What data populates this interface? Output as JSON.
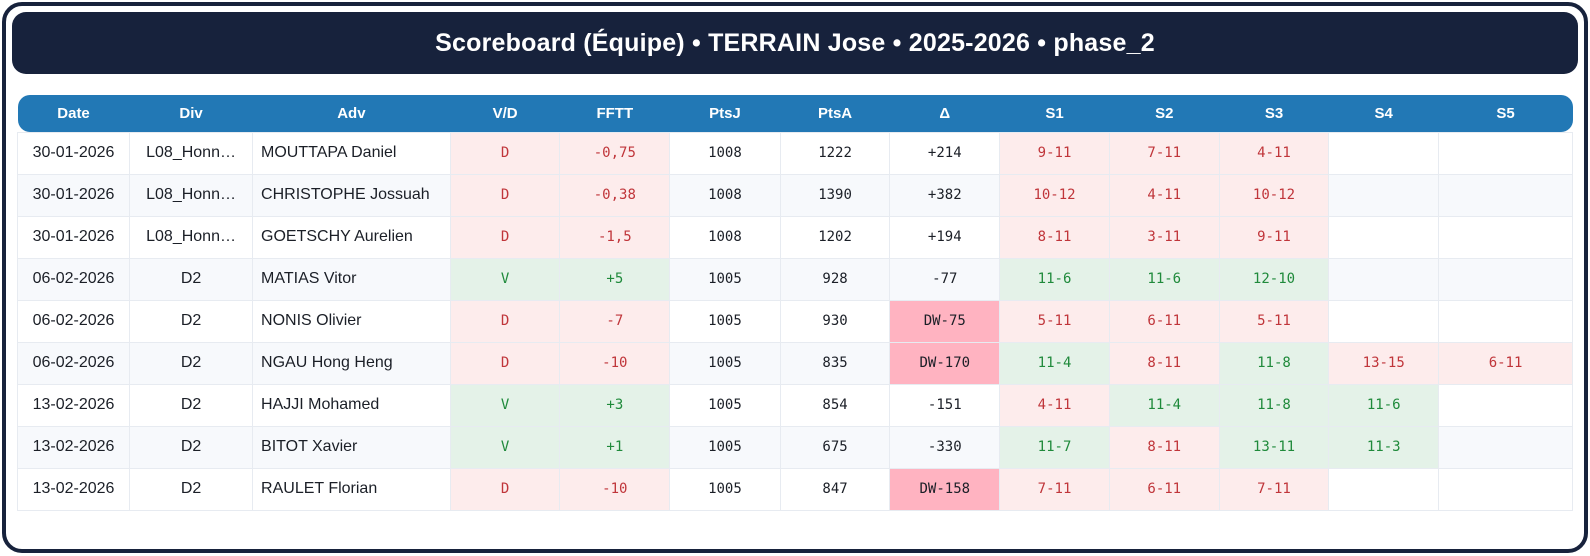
{
  "header": {
    "title": "Scoreboard (Équipe) • TERRAIN Jose • 2025-2026 • phase_2"
  },
  "colors": {
    "navy": "#17223c",
    "blue": "#2278b5",
    "loss_bg": "#fdecec",
    "win_bg": "#e4f2e8",
    "dw_bg": "#ffb3c1",
    "loss_text": "#c0353a",
    "win_text": "#1f8a3b"
  },
  "chart_data": {
    "type": "table",
    "title": "Scoreboard (Équipe) • TERRAIN Jose • 2025-2026 • phase_2",
    "columns": [
      "Date",
      "Div",
      "Adv",
      "V/D",
      "FFTT",
      "PtsJ",
      "PtsA",
      "Δ",
      "S1",
      "S2",
      "S3",
      "S4",
      "S5"
    ],
    "rows": [
      {
        "date": "30-01-2026",
        "div": "L08_Honn…",
        "adv": "MOUTTAPA Daniel",
        "result": "D",
        "fftt": "-0,75",
        "ptsj": "1008",
        "ptsa": "1222",
        "delta": "+214",
        "sets": [
          {
            "score": "9-11",
            "result": "loss"
          },
          {
            "score": "7-11",
            "result": "loss"
          },
          {
            "score": "4-11",
            "result": "loss"
          },
          null,
          null
        ]
      },
      {
        "date": "30-01-2026",
        "div": "L08_Honn…",
        "adv": "CHRISTOPHE Jossuah",
        "result": "D",
        "fftt": "-0,38",
        "ptsj": "1008",
        "ptsa": "1390",
        "delta": "+382",
        "sets": [
          {
            "score": "10-12",
            "result": "loss"
          },
          {
            "score": "4-11",
            "result": "loss"
          },
          {
            "score": "10-12",
            "result": "loss"
          },
          null,
          null
        ]
      },
      {
        "date": "30-01-2026",
        "div": "L08_Honn…",
        "adv": "GOETSCHY Aurelien",
        "result": "D",
        "fftt": "-1,5",
        "ptsj": "1008",
        "ptsa": "1202",
        "delta": "+194",
        "sets": [
          {
            "score": "8-11",
            "result": "loss"
          },
          {
            "score": "3-11",
            "result": "loss"
          },
          {
            "score": "9-11",
            "result": "loss"
          },
          null,
          null
        ]
      },
      {
        "date": "06-02-2026",
        "div": "D2",
        "adv": "MATIAS Vitor",
        "result": "V",
        "fftt": "+5",
        "ptsj": "1005",
        "ptsa": "928",
        "delta": "-77",
        "sets": [
          {
            "score": "11-6",
            "result": "win"
          },
          {
            "score": "11-6",
            "result": "win"
          },
          {
            "score": "12-10",
            "result": "win"
          },
          null,
          null
        ]
      },
      {
        "date": "06-02-2026",
        "div": "D2",
        "adv": "NONIS Olivier",
        "result": "D",
        "fftt": "-7",
        "ptsj": "1005",
        "ptsa": "930",
        "delta": "DW-75",
        "sets": [
          {
            "score": "5-11",
            "result": "loss"
          },
          {
            "score": "6-11",
            "result": "loss"
          },
          {
            "score": "5-11",
            "result": "loss"
          },
          null,
          null
        ]
      },
      {
        "date": "06-02-2026",
        "div": "D2",
        "adv": "NGAU Hong Heng",
        "result": "D",
        "fftt": "-10",
        "ptsj": "1005",
        "ptsa": "835",
        "delta": "DW-170",
        "sets": [
          {
            "score": "11-4",
            "result": "win"
          },
          {
            "score": "8-11",
            "result": "loss"
          },
          {
            "score": "11-8",
            "result": "win"
          },
          {
            "score": "13-15",
            "result": "loss"
          },
          {
            "score": "6-11",
            "result": "loss"
          }
        ]
      },
      {
        "date": "13-02-2026",
        "div": "D2",
        "adv": "HAJJI Mohamed",
        "result": "V",
        "fftt": "+3",
        "ptsj": "1005",
        "ptsa": "854",
        "delta": "-151",
        "sets": [
          {
            "score": "4-11",
            "result": "loss"
          },
          {
            "score": "11-4",
            "result": "win"
          },
          {
            "score": "11-8",
            "result": "win"
          },
          {
            "score": "11-6",
            "result": "win"
          },
          null
        ]
      },
      {
        "date": "13-02-2026",
        "div": "D2",
        "adv": "BITOT Xavier",
        "result": "V",
        "fftt": "+1",
        "ptsj": "1005",
        "ptsa": "675",
        "delta": "-330",
        "sets": [
          {
            "score": "11-7",
            "result": "win"
          },
          {
            "score": "8-11",
            "result": "loss"
          },
          {
            "score": "13-11",
            "result": "win"
          },
          {
            "score": "11-3",
            "result": "win"
          },
          null
        ]
      },
      {
        "date": "13-02-2026",
        "div": "D2",
        "adv": "RAULET Florian",
        "result": "D",
        "fftt": "-10",
        "ptsj": "1005",
        "ptsa": "847",
        "delta": "DW-158",
        "sets": [
          {
            "score": "7-11",
            "result": "loss"
          },
          {
            "score": "6-11",
            "result": "loss"
          },
          {
            "score": "7-11",
            "result": "loss"
          },
          null,
          null
        ]
      }
    ]
  }
}
